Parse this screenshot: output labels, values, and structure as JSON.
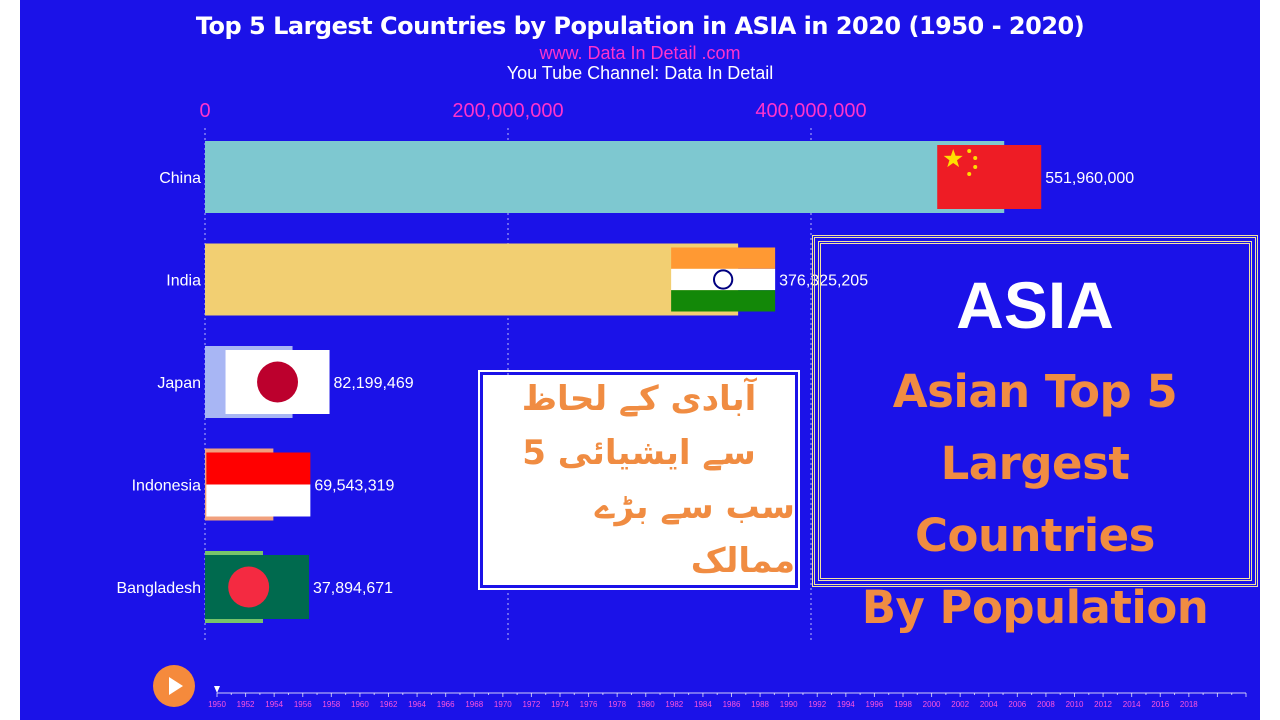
{
  "header": {
    "title": "Top 5 Largest Countries by Population in ASIA in 2020 (1950 - 2020)",
    "website": "www. Data In Detail .com",
    "channel": "You Tube Channel: Data In Detail"
  },
  "chart_data": {
    "type": "bar",
    "orientation": "horizontal",
    "x_ticks": [
      "0",
      "200,000,000",
      "400,000,000"
    ],
    "x_tick_values": [
      0,
      200000000,
      400000000
    ],
    "categories": [
      "China",
      "India",
      "Japan",
      "Indonesia",
      "Bangladesh"
    ],
    "values": [
      551960000,
      376325205,
      82199469,
      69543319,
      37894671
    ],
    "value_labels": [
      "551,960,000",
      "376,325,205",
      "82,199,469",
      "69,543,319",
      "37,894,671"
    ],
    "colors": [
      "#7ec8d0",
      "#f2cf72",
      "#a8b6f4",
      "#f1a07d",
      "#77c46a"
    ],
    "flags": [
      "china-flag",
      "india-flag",
      "japan-flag",
      "indonesia-flag",
      "bangladesh-flag"
    ],
    "grid": true,
    "timeline": {
      "years": [
        "1950",
        "1952",
        "1954",
        "1956",
        "1958",
        "1960",
        "1962",
        "1964",
        "1966",
        "1968",
        "1970",
        "1972",
        "1974",
        "1976",
        "1978",
        "1980",
        "1982",
        "1984",
        "1986",
        "1988",
        "1990",
        "1992",
        "1994",
        "1996",
        "1998",
        "2000",
        "2002",
        "2004",
        "2006",
        "2008",
        "2010",
        "2012",
        "2014",
        "2016",
        "2018"
      ],
      "current_year": "1950"
    }
  },
  "urdu_box": {
    "lines": [
      "آبادی کے لحاظ",
      "سے ایشیائی 5",
      "سب سے بڑے ممالک"
    ]
  },
  "promo_box": {
    "heading": "ASIA",
    "lines": [
      "Asian Top 5",
      "Largest Countries",
      "By Population"
    ]
  },
  "colors": {
    "background": "#1b12e8",
    "accent": "#f08c42",
    "tick": "#ff33cc"
  }
}
